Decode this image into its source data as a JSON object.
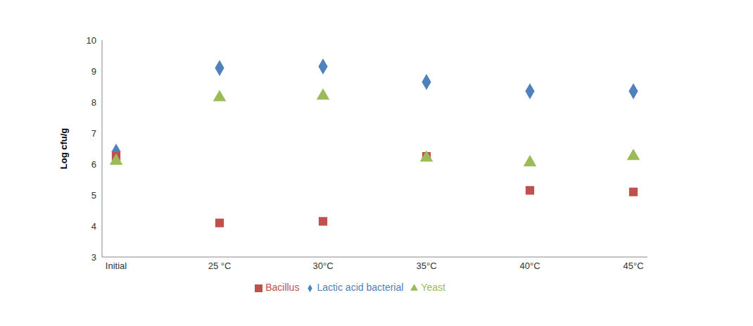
{
  "chart_data": {
    "type": "scatter",
    "y_label": "Log cfu/g",
    "categories": [
      "Initial",
      "25 °C",
      "30°C",
      "35°C",
      "40°C",
      "45°C"
    ],
    "series": [
      {
        "name": "Lactic acid bacterial",
        "color": "#4f81bd",
        "marker": "diamond",
        "values": [
          6.4,
          9.1,
          9.15,
          8.65,
          8.35,
          8.35
        ]
      },
      {
        "name": "Bacillus",
        "color": "#c0504d",
        "marker": "square",
        "values": [
          6.25,
          4.1,
          4.15,
          6.25,
          5.15,
          5.1
        ]
      },
      {
        "name": "Yeast",
        "color": "#9bbb59",
        "marker": "triangle",
        "values": [
          6.1,
          8.15,
          8.2,
          6.2,
          6.05,
          6.25
        ]
      }
    ],
    "ylim": [
      3,
      10
    ],
    "yticks": [
      3,
      4,
      5,
      6,
      7,
      8,
      9,
      10
    ],
    "grid": false,
    "legend": "bottom"
  }
}
